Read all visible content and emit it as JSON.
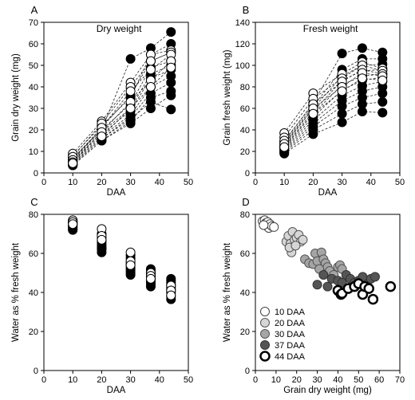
{
  "chart_data": [
    {
      "type": "line",
      "panel_label": "A",
      "title": "Dry weight",
      "xlabel": "DAA",
      "ylabel": "Grain dry weight (mg)",
      "xlim": [
        0,
        50
      ],
      "ylim": [
        0,
        70
      ],
      "xticks": [
        0,
        10,
        20,
        30,
        40,
        50
      ],
      "yticks": [
        0,
        10,
        20,
        30,
        40,
        50,
        60,
        70
      ],
      "x": [
        10,
        20,
        30,
        37,
        44
      ],
      "series": [
        {
          "values": [
            9.0,
            24.0,
            42.0,
            55.0,
            57.0
          ],
          "marker": "open"
        },
        {
          "values": [
            7.5,
            23.0,
            40.0,
            52.0,
            56.0
          ],
          "marker": "open"
        },
        {
          "values": [
            6.0,
            21.0,
            38.0,
            48.0,
            55.0
          ],
          "marker": "open"
        },
        {
          "values": [
            5.0,
            19.0,
            33.0,
            43.0,
            52.0
          ],
          "marker": "open"
        },
        {
          "values": [
            4.5,
            17.0,
            30.0,
            40.0,
            49.0
          ],
          "marker": "open"
        },
        {
          "values": [
            7.0,
            20.0,
            53.0,
            58.0,
            65.5
          ],
          "marker": "filled"
        },
        {
          "values": [
            8.0,
            22.0,
            35.0,
            55.0,
            60.0
          ],
          "marker": "filled"
        },
        {
          "values": [
            6.5,
            21.0,
            36.0,
            52.0,
            56.0
          ],
          "marker": "filled"
        },
        {
          "values": [
            6.0,
            20.0,
            32.0,
            49.0,
            52.0
          ],
          "marker": "filled"
        },
        {
          "values": [
            5.5,
            19.0,
            30.0,
            46.0,
            50.0
          ],
          "marker": "filled"
        },
        {
          "values": [
            5.0,
            18.0,
            29.0,
            44.0,
            48.0
          ],
          "marker": "filled"
        },
        {
          "values": [
            4.5,
            17.0,
            27.0,
            40.0,
            45.0
          ],
          "marker": "filled"
        },
        {
          "values": [
            4.0,
            16.0,
            26.0,
            37.0,
            42.0
          ],
          "marker": "filled"
        },
        {
          "values": [
            3.5,
            15.0,
            24.0,
            35.0,
            38.0
          ],
          "marker": "filled"
        },
        {
          "values": [
            3.5,
            15.0,
            23.0,
            30.0,
            36.0
          ],
          "marker": "filled"
        },
        {
          "values": [
            4.0,
            16.0,
            25.0,
            33.0,
            29.5
          ],
          "marker": "filled"
        }
      ]
    },
    {
      "type": "line",
      "panel_label": "B",
      "title": "Fresh weight",
      "xlabel": "DAA",
      "ylabel": "Grain fresh weight (mg)",
      "xlim": [
        0,
        50
      ],
      "ylim": [
        0,
        140
      ],
      "xticks": [
        0,
        10,
        20,
        30,
        40,
        50
      ],
      "yticks": [
        0,
        20,
        40,
        60,
        80,
        100,
        120,
        140
      ],
      "x": [
        10,
        20,
        30,
        37,
        44
      ],
      "series": [
        {
          "values": [
            37,
            74,
            92,
            103,
            97
          ],
          "marker": "open"
        },
        {
          "values": [
            33,
            69,
            88,
            100,
            95
          ],
          "marker": "open"
        },
        {
          "values": [
            30,
            64,
            85,
            96,
            92
          ],
          "marker": "open"
        },
        {
          "values": [
            27,
            60,
            80,
            93,
            90
          ],
          "marker": "open"
        },
        {
          "values": [
            24,
            55,
            76,
            88,
            86
          ],
          "marker": "open"
        },
        {
          "values": [
            29,
            65,
            111,
            116,
            112
          ],
          "marker": "filled"
        },
        {
          "values": [
            28,
            62,
            96,
            106,
            106
          ],
          "marker": "filled"
        },
        {
          "values": [
            26,
            60,
            90,
            100,
            101
          ],
          "marker": "filled"
        },
        {
          "values": [
            25,
            57,
            86,
            95,
            96
          ],
          "marker": "filled"
        },
        {
          "values": [
            24,
            55,
            82,
            90,
            92
          ],
          "marker": "filled"
        },
        {
          "values": [
            23,
            52,
            77,
            86,
            89
          ],
          "marker": "filled"
        },
        {
          "values": [
            22,
            49,
            72,
            81,
            85
          ],
          "marker": "filled"
        },
        {
          "values": [
            21,
            46,
            67,
            76,
            80
          ],
          "marker": "filled"
        },
        {
          "values": [
            20,
            43,
            62,
            70,
            74
          ],
          "marker": "filled"
        },
        {
          "values": [
            19,
            40,
            55,
            64,
            66
          ],
          "marker": "filled"
        },
        {
          "values": [
            18,
            36,
            47,
            57,
            56
          ],
          "marker": "filled"
        }
      ]
    },
    {
      "type": "scatter",
      "panel_label": "C",
      "xlabel": "DAA",
      "ylabel": "Water as % fresh weight",
      "xlim": [
        0,
        50
      ],
      "ylim": [
        0,
        80
      ],
      "xticks": [
        0,
        10,
        20,
        30,
        40,
        50
      ],
      "yticks": [
        0,
        20,
        40,
        60,
        80
      ],
      "groups": [
        {
          "x": 10,
          "open": [
            77.0,
            76.0,
            75.0
          ],
          "filled": [
            76.5,
            76.0,
            75.5,
            75.0,
            74.5,
            74.0,
            73.5,
            73.0,
            72.5,
            72.0
          ]
        },
        {
          "x": 20,
          "open": [
            72.5,
            69.0,
            67.0
          ],
          "filled": [
            70.0,
            68.0,
            67.0,
            66.0,
            65.0,
            64.0,
            63.0,
            62.5,
            62.0,
            60.5
          ]
        },
        {
          "x": 30,
          "open": [
            60.5,
            56.0,
            54.0
          ],
          "filled": [
            59.0,
            57.5,
            56.0,
            55.0,
            54.0,
            53.0,
            52.0,
            51.0,
            50.0,
            49.0
          ]
        },
        {
          "x": 37,
          "open": [
            50.0,
            48.5,
            47.0
          ],
          "filled": [
            52.0,
            51.0,
            50.0,
            49.0,
            48.0,
            47.0,
            46.0,
            45.0,
            44.0,
            43.0
          ]
        },
        {
          "x": 44,
          "open": [
            43.5,
            41.0,
            38.5
          ],
          "filled": [
            47.0,
            46.0,
            45.0,
            44.0,
            43.0,
            42.0,
            41.0,
            40.0,
            38.0,
            36.5
          ]
        }
      ]
    },
    {
      "type": "scatter",
      "panel_label": "D",
      "xlabel": "Grain dry weight (mg)",
      "ylabel": "Water as % fresh weight",
      "xlim": [
        0,
        70
      ],
      "ylim": [
        0,
        80
      ],
      "xticks": [
        0,
        10,
        20,
        30,
        40,
        50,
        60,
        70
      ],
      "yticks": [
        0,
        20,
        40,
        60,
        80
      ],
      "legend_position": "lower-left",
      "series": [
        {
          "name": "10 DAA",
          "fill": "#ffffff",
          "stroke": "#444444",
          "stroke_width": 1,
          "points": [
            [
              3.5,
              76.5
            ],
            [
              4.5,
              77.0
            ],
            [
              5.0,
              75.5
            ],
            [
              5.5,
              74.0
            ],
            [
              6.0,
              76.0
            ],
            [
              6.5,
              73.0
            ],
            [
              7.0,
              75.0
            ],
            [
              8.0,
              74.0
            ],
            [
              9.0,
              73.5
            ],
            [
              4.0,
              74.5
            ]
          ]
        },
        {
          "name": "20 DAA",
          "fill": "#d6d6d6",
          "stroke": "#555555",
          "stroke_width": 1,
          "points": [
            [
              15.0,
              66.0
            ],
            [
              16.0,
              69.0
            ],
            [
              17.0,
              65.0
            ],
            [
              18.0,
              71.0
            ],
            [
              19.0,
              67.0
            ],
            [
              20.0,
              68.0
            ],
            [
              21.0,
              69.5
            ],
            [
              22.0,
              66.0
            ],
            [
              23.0,
              67.0
            ],
            [
              17.5,
              60.5
            ],
            [
              16.5,
              63.0
            ],
            [
              19.5,
              64.0
            ]
          ]
        },
        {
          "name": "30 DAA",
          "fill": "#a5a5a5",
          "stroke": "#555555",
          "stroke_width": 1,
          "points": [
            [
              24.0,
              57.0
            ],
            [
              26.0,
              55.0
            ],
            [
              28.0,
              54.5
            ],
            [
              29.0,
              60.0
            ],
            [
              30.0,
              56.0
            ],
            [
              31.0,
              52.0
            ],
            [
              32.0,
              60.5
            ],
            [
              33.0,
              57.0
            ],
            [
              34.0,
              55.0
            ],
            [
              35.0,
              53.0
            ],
            [
              36.0,
              51.0
            ],
            [
              38.0,
              49.0
            ],
            [
              40.0,
              53.0
            ],
            [
              41.0,
              54.0
            ],
            [
              42.0,
              52.0
            ]
          ]
        },
        {
          "name": "37 DAA",
          "fill": "#555555",
          "stroke": "#333333",
          "stroke_width": 1,
          "points": [
            [
              30.0,
              44.0
            ],
            [
              33.0,
              49.0
            ],
            [
              35.0,
              43.0
            ],
            [
              37.0,
              47.0
            ],
            [
              40.0,
              46.0
            ],
            [
              42.0,
              45.0
            ],
            [
              44.0,
              49.0
            ],
            [
              46.0,
              47.0
            ],
            [
              48.0,
              45.0
            ],
            [
              50.0,
              46.0
            ],
            [
              52.0,
              48.0
            ],
            [
              54.0,
              44.0
            ],
            [
              56.0,
              47.0
            ],
            [
              58.0,
              48.0
            ]
          ]
        },
        {
          "name": "44 DAA",
          "fill": "#ffffff",
          "stroke": "#000000",
          "stroke_width": 2.5,
          "points": [
            [
              40.0,
              41.0
            ],
            [
              41.5,
              39.0
            ],
            [
              42.0,
              39.5
            ],
            [
              45.0,
              42.0
            ],
            [
              48.0,
              43.0
            ],
            [
              50.0,
              44.5
            ],
            [
              52.0,
              39.0
            ],
            [
              53.0,
              43.0
            ],
            [
              55.0,
              42.0
            ],
            [
              57.0,
              36.5
            ],
            [
              65.5,
              43.0
            ]
          ]
        }
      ]
    }
  ]
}
